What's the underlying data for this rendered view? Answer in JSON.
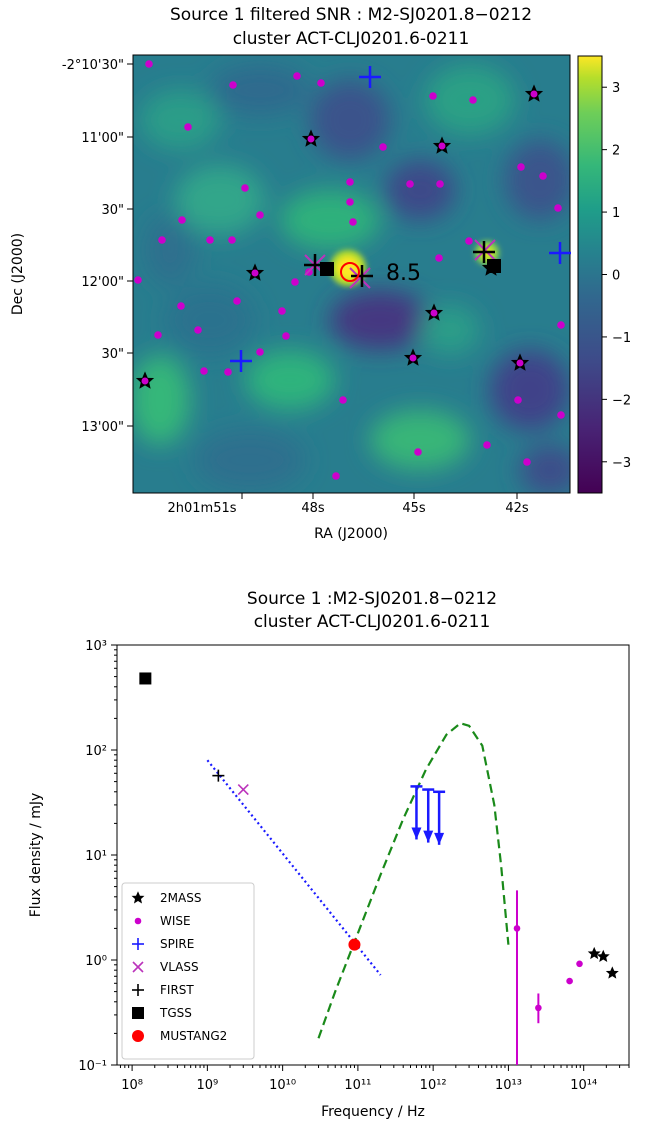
{
  "top_panel": {
    "title_line1": "Source 1 filtered SNR : M2-SJ0201.8−0212",
    "title_line2": "cluster ACT-CLJ0201.6-0211",
    "xlabel": "RA (J2000)",
    "ylabel": "Dec (J2000)",
    "snr_annotation": "8.5",
    "ra_ticks": [
      "2h01m51s",
      "48s",
      "45s",
      "42s"
    ],
    "dec_ticks": [
      "-2°10'30\"",
      "11'00\"",
      "30\"",
      "12'00\"",
      "30\"",
      "13'00\""
    ],
    "colorbar_ticks": [
      "3",
      "2",
      "1",
      "0",
      "−1",
      "−2",
      "−3"
    ],
    "colorbar_range": [
      -3.5,
      3.5
    ],
    "colormap": "viridis",
    "colors": {
      "wise": "#cc00cc",
      "spire": "#1a1aff",
      "mustang2": "#ff0000",
      "first": "#000000",
      "vlass": "#bb33bb",
      "tgss": "#000000"
    }
  },
  "chart_data": {
    "type": "scatter",
    "title_line1": "Source 1 :M2-SJ0201.8−0212",
    "title_line2": "cluster ACT-CLJ0201.6-0211",
    "xlabel": "Frequency / Hz",
    "ylabel": "Flux density / mJy",
    "xscale": "log",
    "yscale": "log",
    "xlim": [
      63000000.0,
      400000000000000.0
    ],
    "ylim": [
      0.1,
      1000
    ],
    "x_tick_labels": [
      "10⁸",
      "10⁹",
      "10¹⁰",
      "10¹¹",
      "10¹²",
      "10¹³",
      "10¹⁴"
    ],
    "y_tick_labels": [
      "10⁻¹",
      "10⁰",
      "10¹",
      "10²",
      "10³"
    ],
    "legend_position": "lower-left",
    "series": [
      {
        "name": "2MASS",
        "marker": "star",
        "color": "#000000",
        "points": [
          [
            138000000000000.0,
            1.15
          ],
          [
            182000000000000.0,
            1.08
          ],
          [
            240000000000000.0,
            0.75
          ]
        ]
      },
      {
        "name": "WISE",
        "marker": "dot",
        "color": "#cc00cc",
        "points": [
          [
            13000000000000.0,
            2.0
          ],
          [
            25000000000000.0,
            0.35
          ],
          [
            65000000000000.0,
            0.63
          ],
          [
            88000000000000.0,
            0.92
          ]
        ],
        "error_bars": [
          [
            13000000000000.0,
            0.1,
            4.6
          ],
          [
            25000000000000.0,
            0.25,
            0.48
          ]
        ]
      },
      {
        "name": "SPIRE",
        "marker": "plus",
        "color": "#1a1aff",
        "upper_limits": [
          [
            600000000000.0,
            45
          ],
          [
            860000000000.0,
            42
          ],
          [
            1200000000000.0,
            40
          ]
        ]
      },
      {
        "name": "VLASS",
        "marker": "x",
        "color": "#bb33bb",
        "points": [
          [
            3000000000.0,
            42
          ]
        ]
      },
      {
        "name": "FIRST",
        "marker": "plus",
        "color": "#000000",
        "points": [
          [
            1400000000.0,
            57
          ]
        ]
      },
      {
        "name": "TGSS",
        "marker": "square",
        "color": "#000000",
        "points": [
          [
            150000000.0,
            480
          ]
        ]
      },
      {
        "name": "MUSTANG2",
        "marker": "dot-large",
        "color": "#ff0000",
        "points": [
          [
            90000000000.0,
            1.4
          ]
        ]
      }
    ],
    "lines": [
      {
        "style": "dotted",
        "color": "#1a1aff",
        "x": [
          1000000000.0,
          200000000000.0
        ],
        "y": [
          80,
          0.72
        ]
      },
      {
        "style": "dashed",
        "color": "#1a8a1a",
        "x": [
          30000000000.0,
          50000000000.0,
          100000000000.0,
          200000000000.0,
          400000000000.0,
          800000000000.0,
          1500000000000.0,
          2300000000000.0,
          3000000000000.0,
          4500000000000.0,
          6500000000000.0,
          8000000000000.0,
          10000000000000.0
        ],
        "y": [
          0.18,
          0.5,
          1.8,
          6.5,
          22,
          65,
          140,
          180,
          170,
          110,
          30,
          8,
          1.4
        ]
      }
    ]
  }
}
